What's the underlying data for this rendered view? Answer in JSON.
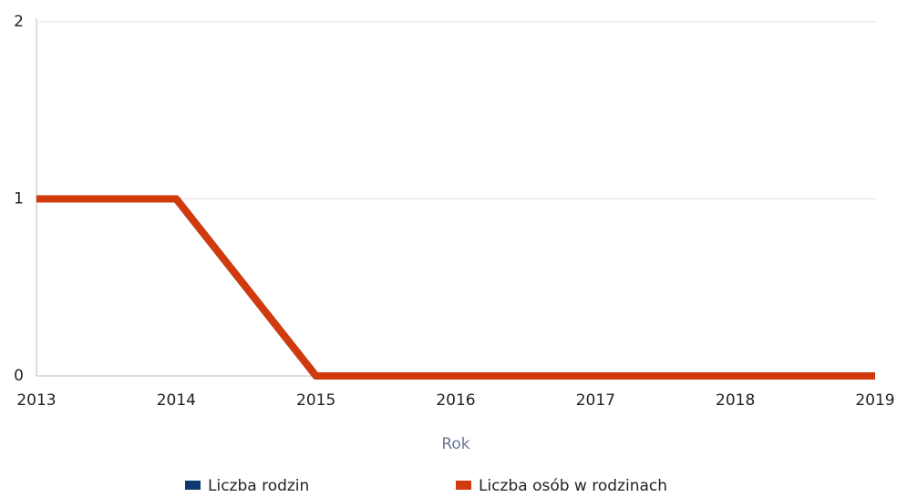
{
  "chart_data": {
    "type": "line",
    "x_label": "Rok",
    "x": [
      2013,
      2014,
      2015,
      2016,
      2017,
      2018,
      2019
    ],
    "series": [
      {
        "name": "Liczba rodzin",
        "color": "#0d3a6e",
        "values": [
          1,
          1,
          0,
          0,
          0,
          0,
          0
        ]
      },
      {
        "name": "Liczba osób w rodzinach",
        "color": "#d03a0c",
        "values": [
          1,
          1,
          0,
          0,
          0,
          0,
          0
        ]
      }
    ],
    "xlim": [
      2013,
      2019
    ],
    "xticks": [
      2013,
      2014,
      2015,
      2016,
      2017,
      2018,
      2019
    ],
    "ylim": [
      0,
      2
    ],
    "yticks": [
      0,
      1,
      2
    ],
    "grid": true,
    "legend": "bottom"
  }
}
